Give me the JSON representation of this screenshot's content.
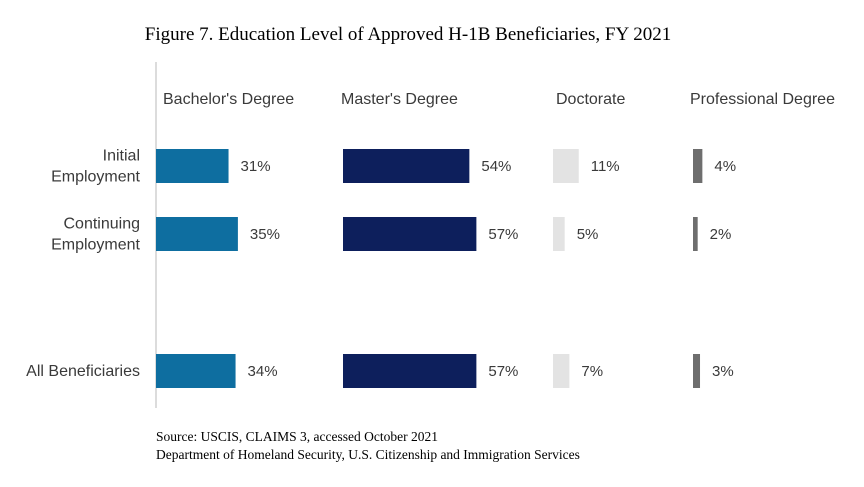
{
  "chart_data": {
    "type": "bar",
    "title": "Figure 7. Education Level of Approved H-1B Beneficiaries, FY 2021",
    "categories": [
      [
        "Initial",
        "Employment"
      ],
      [
        "Continuing",
        "Employment"
      ],
      [
        "All Beneficiaries"
      ]
    ],
    "series": [
      {
        "name": "Bachelor's Degree",
        "color": "#0e6ea0",
        "values": [
          31,
          35,
          34
        ],
        "labels": [
          "31%",
          "35%",
          "34%"
        ]
      },
      {
        "name": "Master's Degree",
        "color": "#0d1f5c",
        "values": [
          54,
          57,
          57
        ],
        "labels": [
          "54%",
          "57%",
          "57%"
        ]
      },
      {
        "name": "Doctorate",
        "color": "#e3e3e3",
        "values": [
          11,
          5,
          7
        ],
        "labels": [
          "11%",
          "5%",
          "7%"
        ]
      },
      {
        "name": "Professional Degree",
        "color": "#6e6e6e",
        "values": [
          4,
          2,
          3
        ],
        "labels": [
          "4%",
          "2%",
          "3%"
        ]
      }
    ],
    "value_unit": "%",
    "legend": "column headers above each bar group",
    "grid": false
  },
  "source": {
    "line1": "Source: USCIS, CLAIMS 3, accessed October 2021",
    "line2": "Department of Homeland Security, U.S. Citizenship and Immigration Services"
  }
}
